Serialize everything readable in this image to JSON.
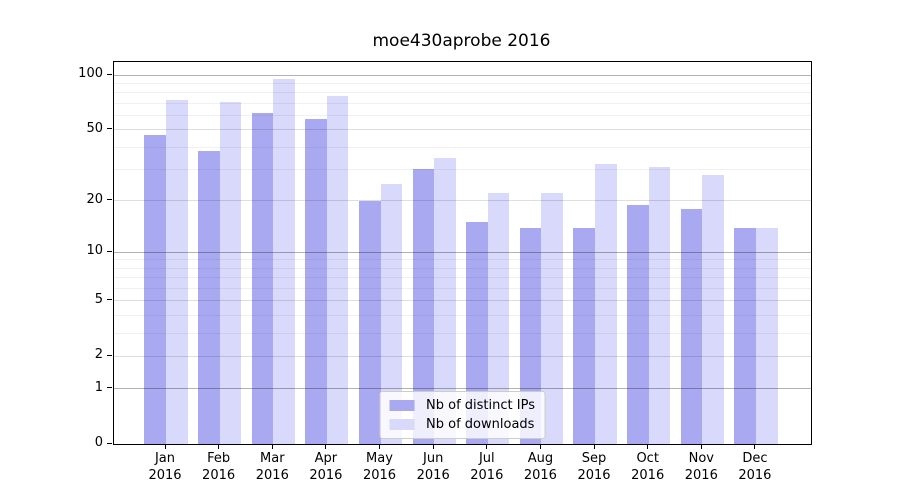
{
  "chart_data": {
    "type": "bar",
    "title": "moe430aprobe 2016",
    "y_scale": "log1p",
    "grid": true,
    "legend_position": "lower center",
    "categories": [
      "Jan",
      "Feb",
      "Mar",
      "Apr",
      "May",
      "Jun",
      "Jul",
      "Aug",
      "Sep",
      "Oct",
      "Nov",
      "Dec"
    ],
    "year_label": "2016",
    "series": [
      {
        "key": "distinct-ips",
        "name": "Nb of distinct IPs",
        "color": "#a9a9f2",
        "values": [
          47,
          38,
          62,
          57,
          20,
          30,
          15,
          14,
          14,
          19,
          18,
          14
        ]
      },
      {
        "key": "downloads",
        "name": "Nb of downloads",
        "color": "#d9d9fb",
        "values": [
          73,
          71,
          95,
          77,
          25,
          35,
          22,
          22,
          32,
          31,
          28,
          14
        ]
      }
    ],
    "xlabel": "",
    "ylabel": "",
    "ylim": [
      0,
      118
    ],
    "yticks_labeled": [
      0,
      1,
      2,
      5,
      10,
      20,
      50,
      100
    ],
    "yticks_major": [
      1,
      10,
      100
    ],
    "yticks_minor": [
      3,
      4,
      6,
      7,
      8,
      9,
      30,
      40,
      60,
      70,
      80,
      90
    ]
  }
}
